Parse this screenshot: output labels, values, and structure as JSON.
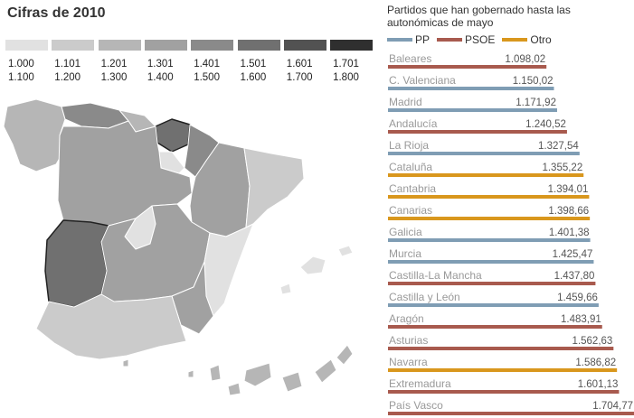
{
  "title": "Cifras de 2010",
  "subtitle": "Partidos que han gobernado hasta las autonómicas de mayo",
  "scale": {
    "colors": [
      "#e1e1e1",
      "#cbcbcb",
      "#b6b6b6",
      "#a1a1a1",
      "#8a8a8a",
      "#707070",
      "#525252",
      "#2f2f2f"
    ],
    "ranges": [
      {
        "from": "1.000",
        "to": "1.100"
      },
      {
        "from": "1.101",
        "to": "1.200"
      },
      {
        "from": "1.201",
        "to": "1.300"
      },
      {
        "from": "1.301",
        "to": "1.400"
      },
      {
        "from": "1.401",
        "to": "1.500"
      },
      {
        "from": "1.501",
        "to": "1.600"
      },
      {
        "from": "1.601",
        "to": "1.700"
      },
      {
        "from": "1.701",
        "to": "1.800"
      }
    ]
  },
  "legend": [
    {
      "key": "PP",
      "label": "PP",
      "color": "#7f9db4"
    },
    {
      "key": "PSOE",
      "label": "PSOE",
      "color": "#a85a4e"
    },
    {
      "key": "Otro",
      "label": "Otro",
      "color": "#d9971d"
    }
  ],
  "chart_data": {
    "type": "bar",
    "orientation": "horizontal",
    "categories": [
      "Baleares",
      "C. Valenciana",
      "Madrid",
      "Andalucía",
      "La Rioja",
      "Cataluña",
      "Cantabria",
      "Canarias",
      "Galicia",
      "Murcia",
      "Castilla-La Mancha",
      "Castilla y León",
      "Aragón",
      "Asturias",
      "Navarra",
      "Extremadura",
      "País Vasco"
    ],
    "values": [
      1098.02,
      1150.02,
      1171.92,
      1240.52,
      1327.54,
      1355.22,
      1394.01,
      1398.66,
      1401.38,
      1425.47,
      1437.8,
      1459.66,
      1483.91,
      1562.63,
      1586.82,
      1601.13,
      1704.77
    ],
    "value_labels": [
      "1.098,02",
      "1.150,02",
      "1.171,92",
      "1.240,52",
      "1.327,54",
      "1.355,22",
      "1.394,01",
      "1.398,66",
      "1.401,38",
      "1.425,47",
      "1.437,80",
      "1.459,66",
      "1.483,91",
      "1.562,63",
      "1.586,82",
      "1.601,13",
      "1.704,77"
    ],
    "party": [
      "PSOE",
      "PP",
      "PP",
      "PSOE",
      "PP",
      "Otro",
      "Otro",
      "Otro",
      "PP",
      "PP",
      "PSOE",
      "PP",
      "PSOE",
      "PSOE",
      "Otro",
      "PSOE",
      "PSOE"
    ],
    "xlim": [
      0,
      1704.77
    ]
  }
}
